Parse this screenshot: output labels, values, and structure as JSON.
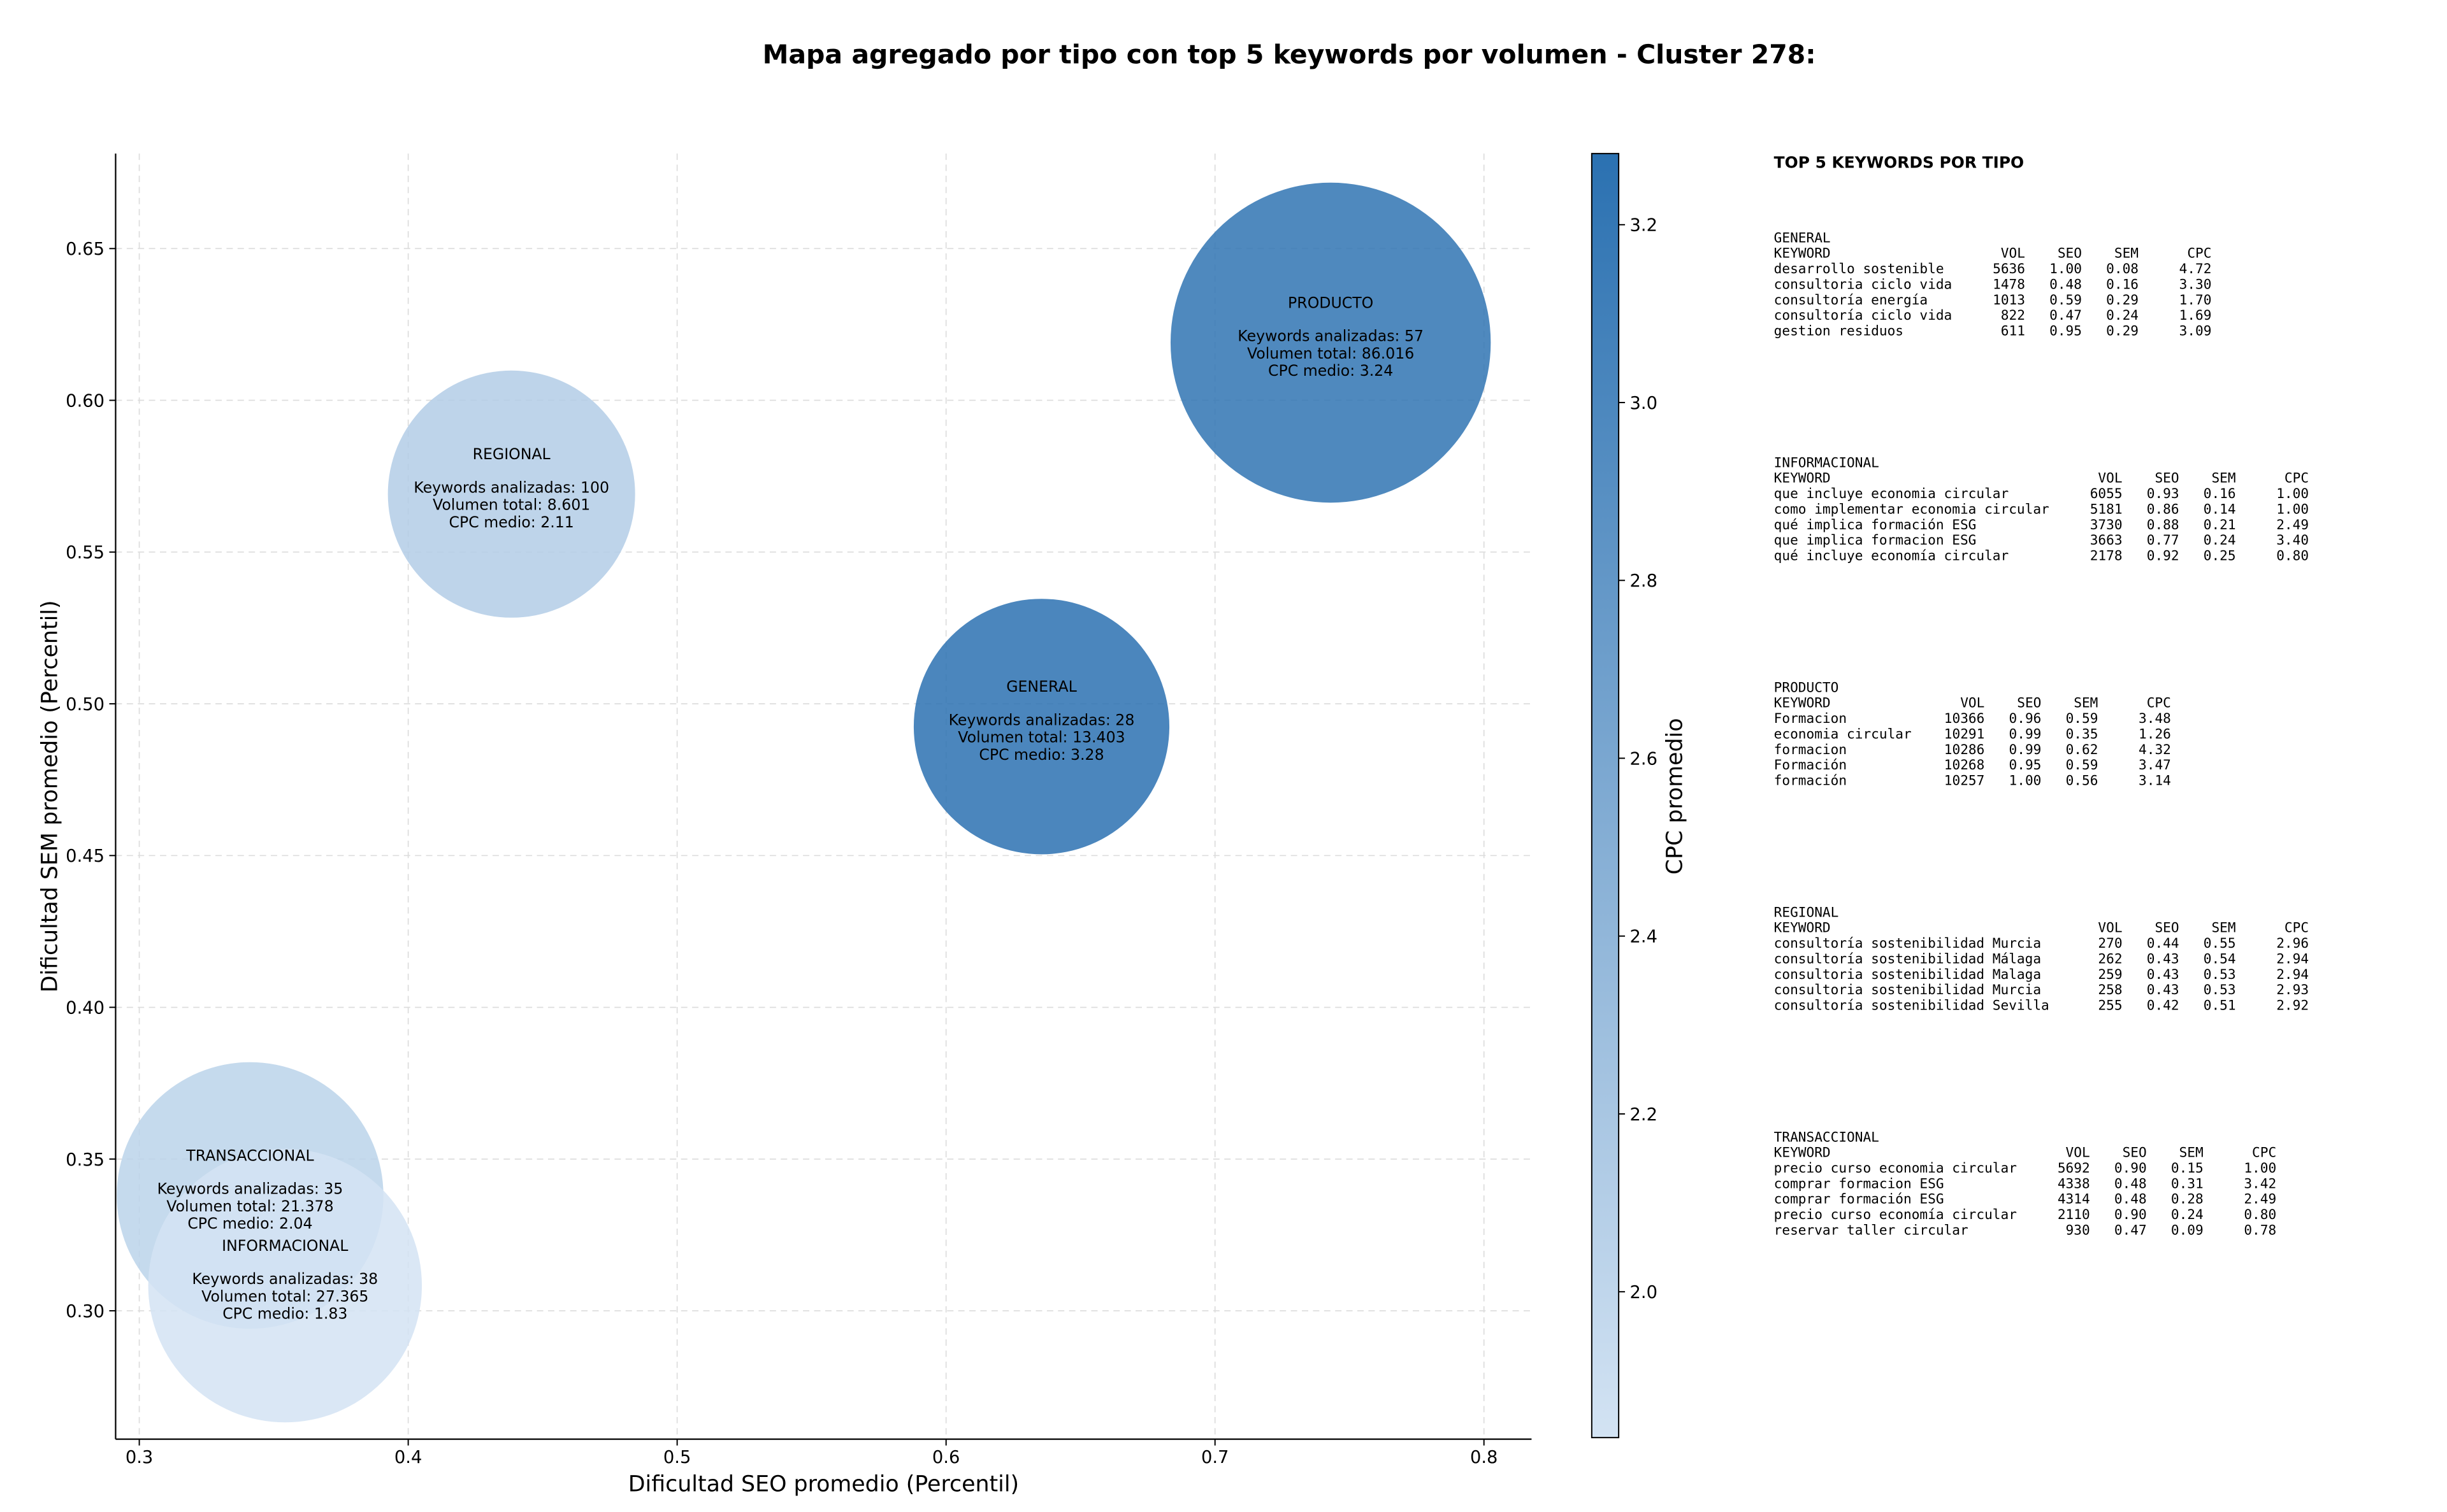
{
  "chart_data": {
    "type": "bubble",
    "title": "Mapa agregado por tipo con top 5 keywords por volumen - Cluster 278:",
    "x_label": "Dificultad SEO promedio (Percentil)",
    "y_label": "Dificultad SEM promedio (Percentil)",
    "colorbar_label": "CPC promedio",
    "xlim": [
      0.2912,
      0.8177
    ],
    "ylim": [
      0.2577,
      0.6813
    ],
    "xticks": [
      0.3,
      0.4,
      0.5,
      0.6,
      0.7,
      0.8
    ],
    "yticks": [
      {
        "value": 0.3,
        "label": "0.30"
      },
      {
        "value": 0.35,
        "label": "0.35"
      },
      {
        "value": 0.4,
        "label": "0.40"
      },
      {
        "value": 0.45,
        "label": "0.45"
      },
      {
        "value": 0.5,
        "label": "0.50"
      },
      {
        "value": 0.55,
        "label": "0.55"
      },
      {
        "value": 0.6,
        "label": "0.60"
      },
      {
        "value": 0.65,
        "label": "0.65"
      }
    ],
    "clim": [
      1.836,
      3.28
    ],
    "cticks": [
      {
        "value": 2.0,
        "label": "2.0"
      },
      {
        "value": 2.2,
        "label": "2.2"
      },
      {
        "value": 2.4,
        "label": "2.4"
      },
      {
        "value": 2.6,
        "label": "2.6"
      },
      {
        "value": 2.8,
        "label": "2.8"
      },
      {
        "value": 3.0,
        "label": "3.0"
      },
      {
        "value": 3.2,
        "label": "3.2"
      }
    ],
    "cmap_colors": [
      "#d3e3f3",
      "#2b71b1"
    ],
    "grid": true,
    "points": [
      {
        "name": "PRODUCTO",
        "x": 0.743,
        "y": 0.619,
        "size": 86016,
        "cpc": 3.24,
        "keywords_label": "Keywords analizadas: 57",
        "volume_label": "Volumen total: 86.016",
        "cpc_label": "CPC medio: 3.24"
      },
      {
        "name": "REGIONAL",
        "x": 0.4384,
        "y": 0.5691,
        "size": 8601,
        "cpc": 2.11,
        "keywords_label": "Keywords analizadas: 100",
        "volume_label": "Volumen total: 8.601",
        "cpc_label": "CPC medio: 2.11"
      },
      {
        "name": "GENERAL",
        "x": 0.6355,
        "y": 0.4925,
        "size": 13403,
        "cpc": 3.28,
        "keywords_label": "Keywords analizadas: 28",
        "volume_label": "Volumen total: 13.403",
        "cpc_label": "CPC medio: 3.28"
      },
      {
        "name": "TRANSACCIONAL",
        "x": 0.3412,
        "y": 0.338,
        "size": 21378,
        "cpc": 2.04,
        "keywords_label": "Keywords analizadas: 35",
        "volume_label": "Volumen total: 21.378",
        "cpc_label": "CPC medio: 2.04"
      },
      {
        "name": "INFORMACIONAL",
        "x": 0.3542,
        "y": 0.3083,
        "size": 27365,
        "cpc": 1.83,
        "keywords_label": "Keywords analizadas: 38",
        "volume_label": "Volumen total: 27.365",
        "cpc_label": "CPC medio: 1.83"
      }
    ]
  },
  "panel": {
    "title": "TOP 5 KEYWORDS POR TIPO",
    "header": [
      "KEYWORD",
      "VOL",
      "SEO",
      "SEM",
      "CPC"
    ],
    "sections": [
      {
        "name": "GENERAL",
        "rows": [
          [
            "desarrollo sostenible",
            "5636",
            "1.00",
            "0.08",
            "4.72"
          ],
          [
            "consultoria ciclo vida",
            "1478",
            "0.48",
            "0.16",
            "3.30"
          ],
          [
            "consultoría energía",
            "1013",
            "0.59",
            "0.29",
            "1.70"
          ],
          [
            "consultoría ciclo vida",
            "822",
            "0.47",
            "0.24",
            "1.69"
          ],
          [
            "gestion residuos",
            "611",
            "0.95",
            "0.29",
            "3.09"
          ]
        ]
      },
      {
        "name": "INFORMACIONAL",
        "rows": [
          [
            "que incluye economia circular",
            "6055",
            "0.93",
            "0.16",
            "1.00"
          ],
          [
            "como implementar economia circular",
            "5181",
            "0.86",
            "0.14",
            "1.00"
          ],
          [
            "qué implica formación ESG",
            "3730",
            "0.88",
            "0.21",
            "2.49"
          ],
          [
            "que implica formacion ESG",
            "3663",
            "0.77",
            "0.24",
            "3.40"
          ],
          [
            "qué incluye economía circular",
            "2178",
            "0.92",
            "0.25",
            "0.80"
          ]
        ]
      },
      {
        "name": "PRODUCTO",
        "rows": [
          [
            "Formacion",
            "10366",
            "0.96",
            "0.59",
            "3.48"
          ],
          [
            "economia circular",
            "10291",
            "0.99",
            "0.35",
            "1.26"
          ],
          [
            "formacion",
            "10286",
            "0.99",
            "0.62",
            "4.32"
          ],
          [
            "Formación",
            "10268",
            "0.95",
            "0.59",
            "3.47"
          ],
          [
            "formación",
            "10257",
            "1.00",
            "0.56",
            "3.14"
          ]
        ]
      },
      {
        "name": "REGIONAL",
        "rows": [
          [
            "consultoría sostenibilidad Murcia",
            "270",
            "0.44",
            "0.55",
            "2.96"
          ],
          [
            "consultoría sostenibilidad Málaga",
            "262",
            "0.43",
            "0.54",
            "2.94"
          ],
          [
            "consultoria sostenibilidad Malaga",
            "259",
            "0.43",
            "0.53",
            "2.94"
          ],
          [
            "consultoria sostenibilidad Murcia",
            "258",
            "0.43",
            "0.53",
            "2.93"
          ],
          [
            "consultoría sostenibilidad Sevilla",
            "255",
            "0.42",
            "0.51",
            "2.92"
          ]
        ]
      },
      {
        "name": "TRANSACCIONAL",
        "rows": [
          [
            "precio curso economia circular",
            "5692",
            "0.90",
            "0.15",
            "1.00"
          ],
          [
            "comprar formacion ESG",
            "4338",
            "0.48",
            "0.31",
            "3.42"
          ],
          [
            "comprar formación ESG",
            "4314",
            "0.48",
            "0.28",
            "2.49"
          ],
          [
            "precio curso economía circular",
            "2110",
            "0.90",
            "0.24",
            "0.80"
          ],
          [
            "reservar taller circular",
            "930",
            "0.47",
            "0.09",
            "0.78"
          ]
        ]
      }
    ]
  }
}
